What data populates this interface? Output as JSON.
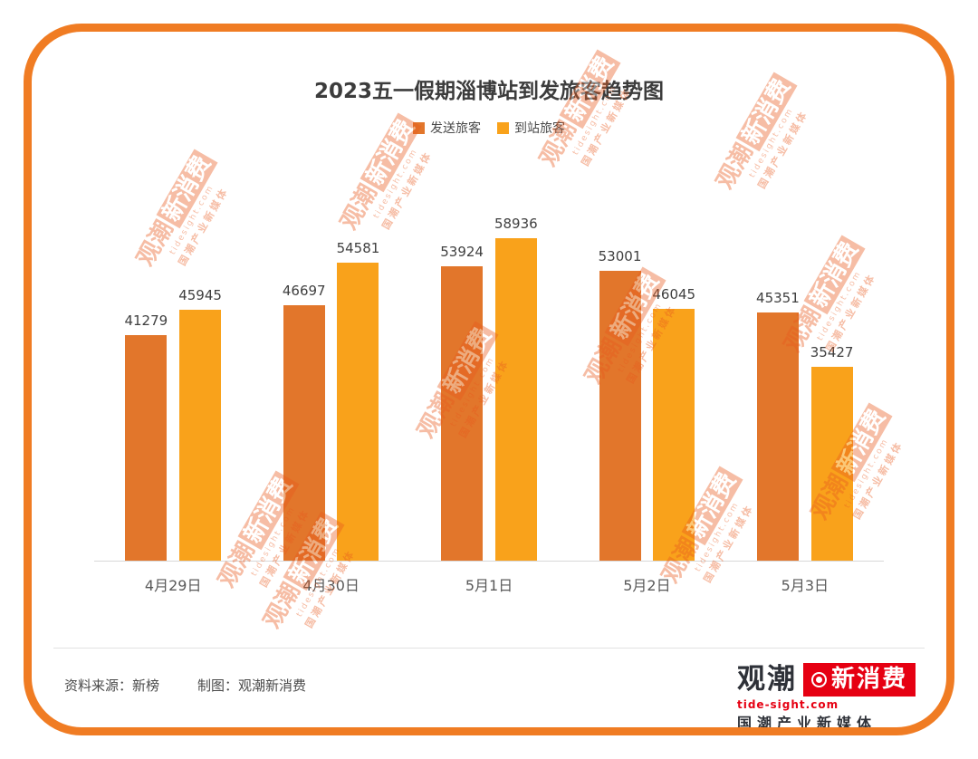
{
  "frame": {
    "border_color": "#F07C23"
  },
  "chart_data": {
    "type": "bar",
    "title": "2023五一假期淄博站到发旅客趋势图",
    "categories": [
      "4月29日",
      "4月30日",
      "5月1日",
      "5月2日",
      "5月3日"
    ],
    "series": [
      {
        "name": "发送旅客",
        "color": "#E2762B",
        "values": [
          41279,
          46697,
          53924,
          53001,
          45351
        ]
      },
      {
        "name": "到站旅客",
        "color": "#F9A21B",
        "values": [
          45945,
          54581,
          58936,
          46045,
          35427
        ]
      }
    ],
    "xlabel": "",
    "ylabel": "",
    "ylim": [
      0,
      60000
    ],
    "grid": false,
    "legend_position": "top",
    "value_labels": true
  },
  "footer": {
    "source_label": "资料来源：新榜",
    "credit_label": "制图：观潮新消费"
  },
  "logo": {
    "brand_first": "观潮",
    "brand_second": "新消费",
    "domain": "tide-sight.com",
    "tagline": "国潮产业新媒体",
    "accent": "#E60012"
  },
  "watermark": {
    "brand_first": "观潮",
    "brand_second": "新消费",
    "domain": "tidesight.com",
    "tagline": "国潮产业新媒体",
    "color": "#E8581C"
  }
}
